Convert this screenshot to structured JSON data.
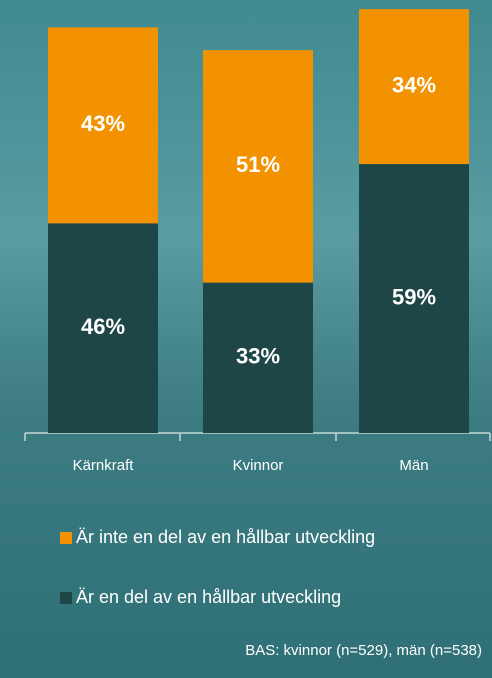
{
  "chart_data": {
    "type": "stacked_bar",
    "categories": [
      "Kärnkraft",
      "Kvinnor",
      "Män"
    ],
    "series": [
      {
        "name": "Är en del av en hållbar utveckling",
        "color": "#1f4647",
        "values": [
          46,
          33,
          59
        ],
        "value_labels": [
          "46%",
          "33%",
          "59%"
        ]
      },
      {
        "name": "Är inte en del av en hållbar utveckling",
        "color": "#f39200",
        "values": [
          43,
          51,
          34
        ],
        "value_labels": [
          "43%",
          "51%",
          "34%"
        ]
      }
    ],
    "ylim": [
      0,
      95
    ],
    "note": "BAS: kvinnor (n=529), män (n=538)"
  }
}
